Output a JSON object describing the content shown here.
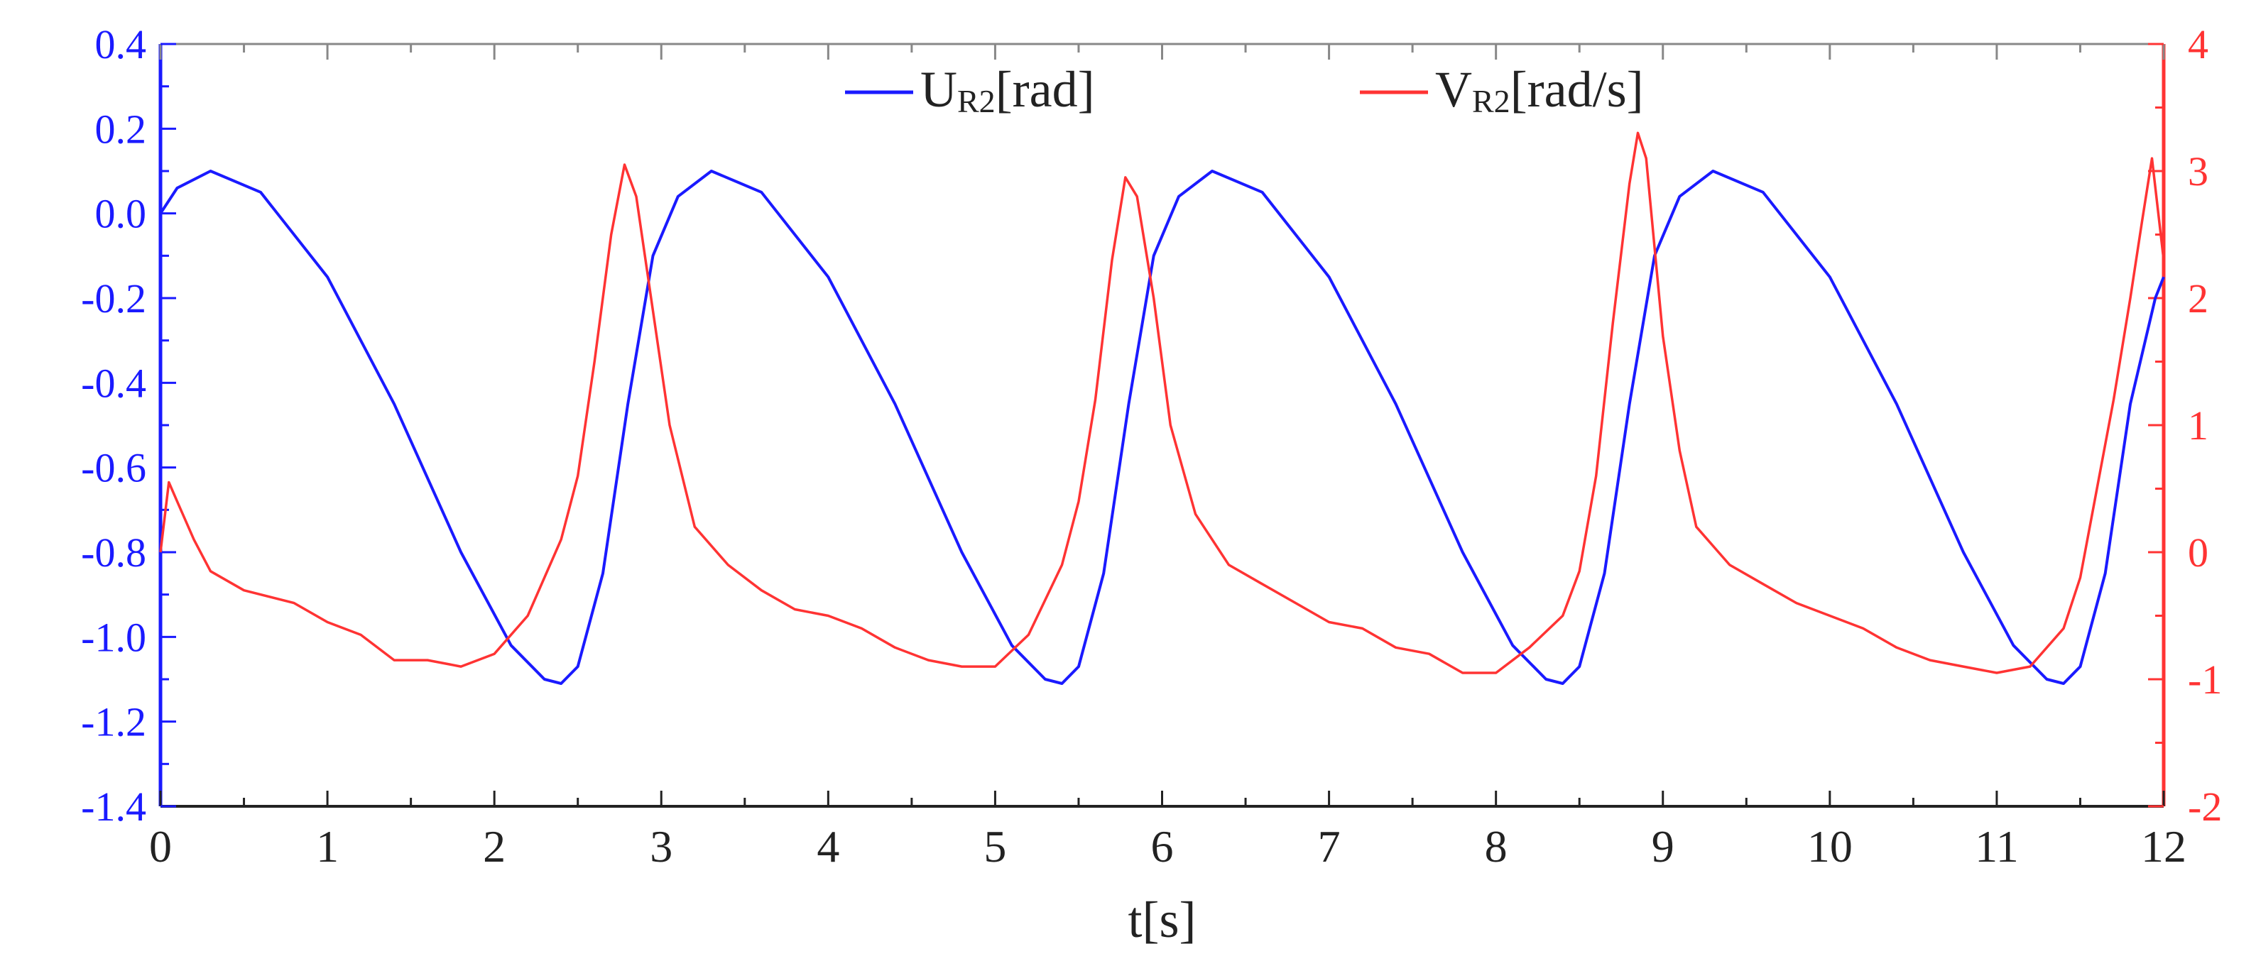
{
  "chart_data": {
    "type": "line",
    "xlabel": "t[s]",
    "xlim": [
      0,
      12
    ],
    "xticks": [
      0,
      1,
      2,
      3,
      4,
      5,
      6,
      7,
      8,
      9,
      10,
      11,
      12
    ],
    "y_left": {
      "lim": [
        -1.4,
        0.4
      ],
      "ticks": [
        "0.4",
        "0.2",
        "0.0",
        "-0.2",
        "-0.4",
        "-0.6",
        "-0.8",
        "-1.0",
        "-1.2",
        "-1.4"
      ],
      "color": "#1a1aff"
    },
    "y_right": {
      "lim": [
        -2,
        4
      ],
      "ticks": [
        "4",
        "3",
        "2",
        "1",
        "0",
        "-1",
        "-2"
      ],
      "color": "#ff3333"
    },
    "legend": {
      "placement": "top-center",
      "entries": [
        {
          "series": 0,
          "main": "U",
          "sub": "R2",
          "unit": "[rad]"
        },
        {
          "series": 1,
          "main": "V",
          "sub": "R2",
          "unit": "[rad/s]"
        }
      ]
    },
    "series": [
      {
        "axis": "left",
        "color": "#1a1aff",
        "x": [
          0,
          0.1,
          0.3,
          0.6,
          1.0,
          1.4,
          1.8,
          2.1,
          2.3,
          2.4,
          2.5,
          2.65,
          2.8,
          2.95,
          3.1,
          3.3,
          3.6,
          4.0,
          4.4,
          4.8,
          5.1,
          5.3,
          5.4,
          5.5,
          5.65,
          5.8,
          5.95,
          6.1,
          6.3,
          6.6,
          7.0,
          7.4,
          7.8,
          8.1,
          8.3,
          8.4,
          8.5,
          8.65,
          8.8,
          8.95,
          9.1,
          9.3,
          9.6,
          10.0,
          10.4,
          10.8,
          11.1,
          11.3,
          11.4,
          11.5,
          11.65,
          11.8,
          11.95,
          12.0
        ],
        "y": [
          0.0,
          0.06,
          0.1,
          0.05,
          -0.15,
          -0.45,
          -0.8,
          -1.02,
          -1.1,
          -1.11,
          -1.07,
          -0.85,
          -0.45,
          -0.1,
          0.04,
          0.1,
          0.05,
          -0.15,
          -0.45,
          -0.8,
          -1.02,
          -1.1,
          -1.11,
          -1.07,
          -0.85,
          -0.45,
          -0.1,
          0.04,
          0.1,
          0.05,
          -0.15,
          -0.45,
          -0.8,
          -1.02,
          -1.1,
          -1.11,
          -1.07,
          -0.85,
          -0.45,
          -0.1,
          0.04,
          0.1,
          0.05,
          -0.15,
          -0.45,
          -0.8,
          -1.02,
          -1.1,
          -1.11,
          -1.07,
          -0.85,
          -0.45,
          -0.2,
          -0.15
        ]
      },
      {
        "axis": "right",
        "color": "#ff3333",
        "x": [
          0,
          0.05,
          0.1,
          0.2,
          0.3,
          0.5,
          0.8,
          1.0,
          1.2,
          1.4,
          1.6,
          1.8,
          2.0,
          2.2,
          2.4,
          2.5,
          2.6,
          2.7,
          2.78,
          2.85,
          2.95,
          3.05,
          3.2,
          3.4,
          3.6,
          3.8,
          4.0,
          4.2,
          4.4,
          4.6,
          4.8,
          5.0,
          5.2,
          5.4,
          5.5,
          5.6,
          5.7,
          5.78,
          5.85,
          5.95,
          6.05,
          6.2,
          6.4,
          6.6,
          6.8,
          7.0,
          7.2,
          7.4,
          7.6,
          7.8,
          8.0,
          8.2,
          8.4,
          8.5,
          8.6,
          8.7,
          8.8,
          8.85,
          8.9,
          9.0,
          9.1,
          9.2,
          9.4,
          9.6,
          9.8,
          10.0,
          10.2,
          10.4,
          10.6,
          10.8,
          11.0,
          11.2,
          11.4,
          11.5,
          11.6,
          11.7,
          11.8,
          11.87,
          11.93,
          12.0
        ],
        "y": [
          0.0,
          0.55,
          0.4,
          0.1,
          -0.15,
          -0.3,
          -0.4,
          -0.55,
          -0.65,
          -0.85,
          -0.85,
          -0.9,
          -0.8,
          -0.5,
          0.1,
          0.6,
          1.5,
          2.5,
          3.05,
          2.8,
          1.9,
          1.0,
          0.2,
          -0.1,
          -0.3,
          -0.45,
          -0.5,
          -0.6,
          -0.75,
          -0.85,
          -0.9,
          -0.9,
          -0.65,
          -0.1,
          0.4,
          1.2,
          2.3,
          2.95,
          2.8,
          2.0,
          1.0,
          0.3,
          -0.1,
          -0.25,
          -0.4,
          -0.55,
          -0.6,
          -0.75,
          -0.8,
          -0.95,
          -0.95,
          -0.75,
          -0.5,
          -0.15,
          0.6,
          1.8,
          2.9,
          3.3,
          3.1,
          1.7,
          0.8,
          0.2,
          -0.1,
          -0.25,
          -0.4,
          -0.5,
          -0.6,
          -0.75,
          -0.85,
          -0.9,
          -0.95,
          -0.9,
          -0.6,
          -0.2,
          0.5,
          1.2,
          2.0,
          2.6,
          3.1,
          2.3
        ]
      }
    ]
  }
}
